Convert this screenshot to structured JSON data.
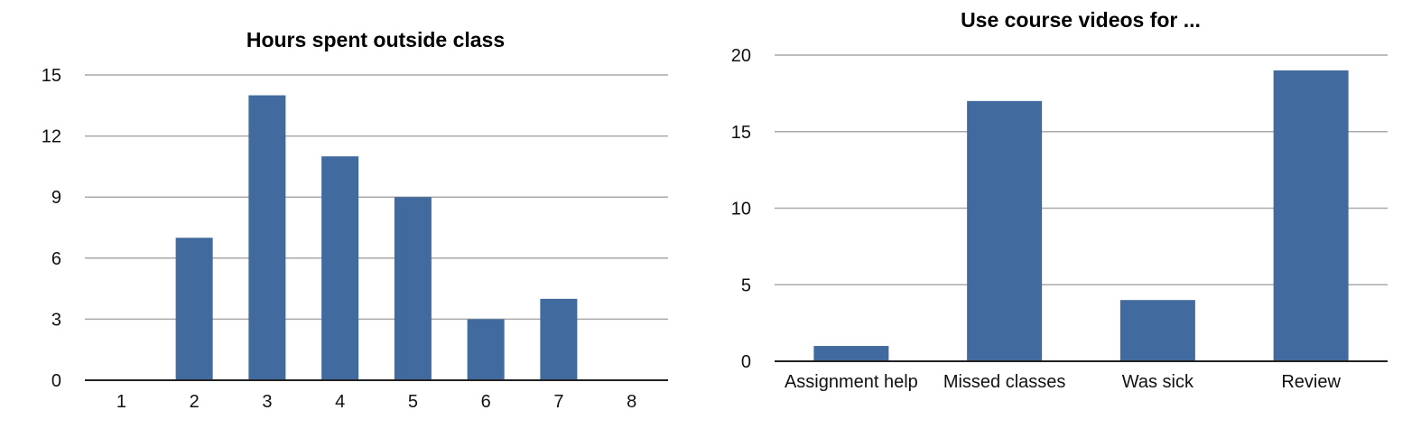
{
  "chart_data": [
    {
      "type": "bar",
      "title": "Hours spent outside class",
      "xlabel": "",
      "ylabel": "",
      "categories": [
        "1",
        "2",
        "3",
        "4",
        "5",
        "6",
        "7",
        "8"
      ],
      "values": [
        0,
        7,
        14,
        11,
        9,
        3,
        4,
        0
      ],
      "ylim": [
        0,
        15
      ],
      "yticks": [
        "0",
        "3",
        "6",
        "9",
        "12",
        "15"
      ],
      "grid": true,
      "legend": "none",
      "bar_color": "#416a9e"
    },
    {
      "type": "bar",
      "title": "Use course videos for ...",
      "xlabel": "",
      "ylabel": "",
      "categories": [
        "Assignment help",
        "Missed classes",
        "Was sick",
        "Review"
      ],
      "values": [
        1,
        17,
        4,
        19
      ],
      "ylim": [
        0,
        20
      ],
      "yticks": [
        "0",
        "5",
        "10",
        "15",
        "20"
      ],
      "grid": true,
      "legend": "none",
      "bar_color": "#416a9e"
    }
  ]
}
